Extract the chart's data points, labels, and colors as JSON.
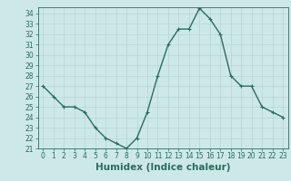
{
  "x": [
    0,
    1,
    2,
    3,
    4,
    5,
    6,
    7,
    8,
    9,
    10,
    11,
    12,
    13,
    14,
    15,
    16,
    17,
    18,
    19,
    20,
    21,
    22,
    23
  ],
  "y": [
    27,
    26,
    25,
    25,
    24.5,
    23,
    22,
    21.5,
    21,
    22,
    24.5,
    28,
    31,
    32.5,
    32.5,
    34.5,
    33.5,
    32,
    28,
    27,
    27,
    25,
    24.5,
    24
  ],
  "line_color": "#2d6b5e",
  "marker": "+",
  "marker_color": "#2d6b5e",
  "bg_color": "#cde8e8",
  "grid_color": "#b5d5d5",
  "xlabel": "Humidex (Indice chaleur)",
  "ylim": [
    21,
    34.6
  ],
  "xlim": [
    -0.5,
    23.5
  ],
  "yticks": [
    21,
    22,
    23,
    24,
    25,
    26,
    27,
    28,
    29,
    30,
    31,
    32,
    33,
    34
  ],
  "xticks": [
    0,
    1,
    2,
    3,
    4,
    5,
    6,
    7,
    8,
    9,
    10,
    11,
    12,
    13,
    14,
    15,
    16,
    17,
    18,
    19,
    20,
    21,
    22,
    23
  ],
  "xtick_labels": [
    "0",
    "1",
    "2",
    "3",
    "4",
    "5",
    "6",
    "7",
    "8",
    "9",
    "10",
    "11",
    "12",
    "13",
    "14",
    "15",
    "16",
    "17",
    "18",
    "19",
    "20",
    "21",
    "22",
    "23"
  ],
  "ytick_labels": [
    "21",
    "22",
    "23",
    "24",
    "25",
    "26",
    "27",
    "28",
    "29",
    "30",
    "31",
    "32",
    "33",
    "34"
  ],
  "tick_color": "#2d6b5e",
  "axis_color": "#2d6b5e",
  "xlabel_fontsize": 7.5,
  "tick_fontsize": 5.5,
  "linewidth": 1.0,
  "markersize": 3.5
}
